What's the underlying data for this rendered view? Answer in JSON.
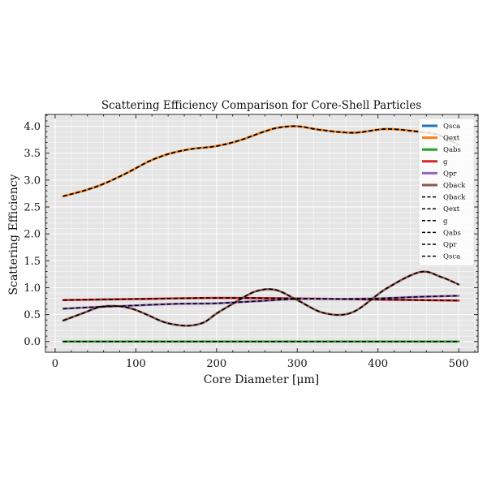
{
  "chart_data": {
    "type": "line",
    "title": "Scattering Efficiency Comparison for Core-Shell Particles",
    "xlabel": "Core Diameter [μm]",
    "ylabel": "Scattering Efficiency",
    "xlim": [
      -12,
      524
    ],
    "ylim": [
      -0.2,
      4.22
    ],
    "xticks": [
      0,
      100,
      200,
      300,
      400,
      500
    ],
    "yticks": [
      0.0,
      0.5,
      1.0,
      1.5,
      2.0,
      2.5,
      3.0,
      3.5,
      4.0
    ],
    "xtick_labels": [
      "0",
      "100",
      "200",
      "300",
      "400",
      "500"
    ],
    "ytick_labels": [
      "0.0",
      "0.5",
      "1.0",
      "1.5",
      "2.0",
      "2.5",
      "3.0",
      "3.5",
      "4.0"
    ],
    "grid": true,
    "background": "#e5e5e5",
    "legend_position": "top-right",
    "series": [
      {
        "name": "Qsca",
        "color": "#1f77b4",
        "style": "solid",
        "x": [
          10,
          35,
          55,
          75,
          95,
          115,
          135,
          155,
          175,
          195,
          215,
          235,
          255,
          275,
          300,
          330,
          370,
          410,
          450,
          475,
          500
        ],
        "y": [
          2.7,
          2.8,
          2.9,
          3.03,
          3.18,
          3.34,
          3.46,
          3.54,
          3.59,
          3.62,
          3.68,
          3.77,
          3.88,
          3.97,
          4.0,
          3.93,
          3.88,
          3.95,
          3.9,
          3.84,
          3.65
        ]
      },
      {
        "name": "Qext",
        "color": "#ff7f0e",
        "style": "solid",
        "x": [
          10,
          35,
          55,
          75,
          95,
          115,
          135,
          155,
          175,
          195,
          215,
          235,
          255,
          275,
          300,
          330,
          370,
          410,
          450,
          475,
          500
        ],
        "y": [
          2.7,
          2.8,
          2.9,
          3.03,
          3.18,
          3.34,
          3.46,
          3.54,
          3.59,
          3.62,
          3.68,
          3.77,
          3.88,
          3.97,
          4.0,
          3.93,
          3.88,
          3.95,
          3.9,
          3.84,
          3.65
        ]
      },
      {
        "name": "Qabs",
        "color": "#2ca02c",
        "style": "solid",
        "x": [
          10,
          500
        ],
        "y": [
          0.0,
          0.0
        ]
      },
      {
        "name": "g",
        "color": "#d62728",
        "style": "solid",
        "x": [
          10,
          100,
          200,
          300,
          400,
          500
        ],
        "y": [
          0.77,
          0.79,
          0.81,
          0.8,
          0.78,
          0.76
        ]
      },
      {
        "name": "Qpr",
        "color": "#9467bd",
        "style": "solid",
        "x": [
          10,
          50,
          100,
          150,
          200,
          250,
          300,
          350,
          400,
          450,
          500
        ],
        "y": [
          0.61,
          0.64,
          0.67,
          0.7,
          0.71,
          0.75,
          0.79,
          0.79,
          0.8,
          0.83,
          0.85
        ]
      },
      {
        "name": "Qback",
        "color": "#8c564b",
        "style": "solid",
        "x": [
          10,
          35,
          55,
          75,
          95,
          115,
          135,
          155,
          170,
          185,
          200,
          220,
          248,
          273,
          300,
          333,
          368,
          410,
          452,
          478,
          500
        ],
        "y": [
          0.39,
          0.53,
          0.64,
          0.66,
          0.61,
          0.49,
          0.36,
          0.3,
          0.3,
          0.36,
          0.52,
          0.7,
          0.93,
          0.96,
          0.77,
          0.53,
          0.54,
          0.98,
          1.29,
          1.2,
          1.06
        ]
      },
      {
        "name": "Qback",
        "color": "#000000",
        "style": "dashed",
        "x": [
          10,
          35,
          55,
          75,
          95,
          115,
          135,
          155,
          170,
          185,
          200,
          220,
          248,
          273,
          300,
          333,
          368,
          410,
          452,
          478,
          500
        ],
        "y": [
          0.39,
          0.53,
          0.64,
          0.66,
          0.61,
          0.49,
          0.36,
          0.3,
          0.3,
          0.36,
          0.52,
          0.7,
          0.93,
          0.96,
          0.77,
          0.53,
          0.54,
          0.98,
          1.29,
          1.2,
          1.06
        ]
      },
      {
        "name": "Qext",
        "color": "#000000",
        "style": "dashed",
        "x": [
          10,
          35,
          55,
          75,
          95,
          115,
          135,
          155,
          175,
          195,
          215,
          235,
          255,
          275,
          300,
          330,
          370,
          410,
          450,
          475,
          500
        ],
        "y": [
          2.7,
          2.8,
          2.9,
          3.03,
          3.18,
          3.34,
          3.46,
          3.54,
          3.59,
          3.62,
          3.68,
          3.77,
          3.88,
          3.97,
          4.0,
          3.93,
          3.88,
          3.95,
          3.9,
          3.84,
          3.65
        ]
      },
      {
        "name": "g",
        "color": "#000000",
        "style": "dashed",
        "x": [
          10,
          100,
          200,
          300,
          400,
          500
        ],
        "y": [
          0.77,
          0.79,
          0.81,
          0.8,
          0.78,
          0.76
        ]
      },
      {
        "name": "Qabs",
        "color": "#000000",
        "style": "dashed",
        "x": [
          10,
          500
        ],
        "y": [
          0.0,
          0.0
        ]
      },
      {
        "name": "Qpr",
        "color": "#000000",
        "style": "dashed",
        "x": [
          10,
          50,
          100,
          150,
          200,
          250,
          300,
          350,
          400,
          450,
          500
        ],
        "y": [
          0.61,
          0.64,
          0.67,
          0.7,
          0.71,
          0.75,
          0.79,
          0.79,
          0.8,
          0.83,
          0.85
        ]
      },
      {
        "name": "Qsca",
        "color": "#000000",
        "style": "dashed",
        "x": [
          10,
          35,
          55,
          75,
          95,
          115,
          135,
          155,
          175,
          195,
          215,
          235,
          255,
          275,
          300,
          330,
          370,
          410,
          450,
          475,
          500
        ],
        "y": [
          2.7,
          2.8,
          2.9,
          3.03,
          3.18,
          3.34,
          3.46,
          3.54,
          3.59,
          3.62,
          3.68,
          3.77,
          3.88,
          3.97,
          4.0,
          3.93,
          3.88,
          3.95,
          3.9,
          3.84,
          3.65
        ]
      }
    ]
  }
}
